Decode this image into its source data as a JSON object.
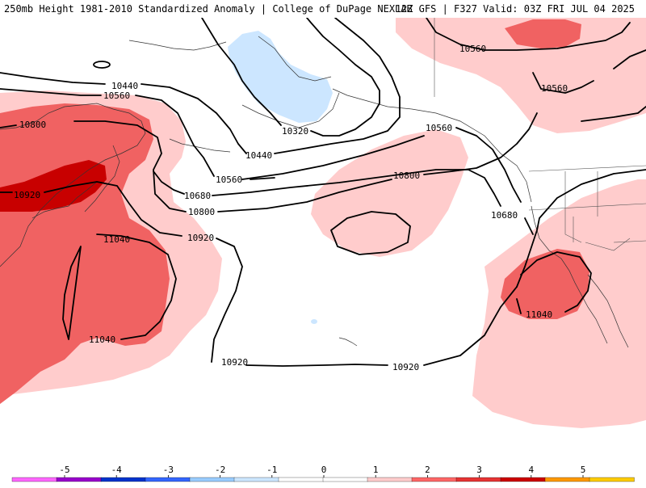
{
  "header": {
    "title_left": "250mb Height 1981-2010 Standardized Anomaly | College of DuPage NEXLAB",
    "title_right": "12Z GFS | F327 Valid: 03Z FRI JUL 04 2025"
  },
  "map": {
    "field": "250mb geopotential height contours with standardized anomaly shading",
    "contour_labels": [
      "10440",
      "10560",
      "10800",
      "10920",
      "11040",
      "11040",
      "10320",
      "10440",
      "10560",
      "10680",
      "10800",
      "10920",
      "10920",
      "10920",
      "10800",
      "10560",
      "10560",
      "10560",
      "10680",
      "11040"
    ]
  },
  "colorbar": {
    "ticks": [
      "-5",
      "-4",
      "-3",
      "-2",
      "-1",
      "0",
      "1",
      "2",
      "3",
      "4",
      "5"
    ],
    "colors": [
      "#ff66ff",
      "#9900cc",
      "#0033cc",
      "#3366ff",
      "#99ccff",
      "#cce6ff",
      "#ffffff",
      "#ffffff",
      "#ffcccc",
      "#ff6666",
      "#e63333",
      "#cc0000",
      "#ff9900",
      "#ffcc00"
    ]
  }
}
